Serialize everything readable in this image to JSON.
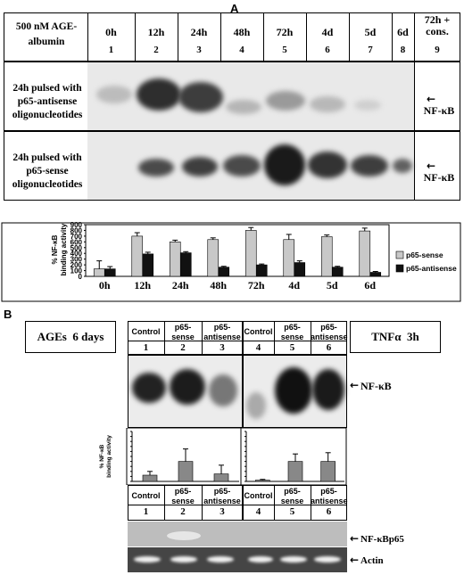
{
  "panelA": {
    "letter": "A",
    "condition_label": "500 nM AGE-albumin",
    "time_labels": [
      "0h",
      "12h",
      "24h",
      "48h",
      "72h",
      "4d",
      "5d",
      "6d",
      "72h + cons."
    ],
    "lane_numbers": [
      "1",
      "2",
      "3",
      "4",
      "5",
      "6",
      "7",
      "8",
      "9"
    ],
    "row1_label": "24h pulsed with p65-antisense oligonucleotides",
    "row2_label": "24h pulsed with p65-sense oligonucleotides",
    "nfkb_label": "NF-κB"
  },
  "chart_data": [
    {
      "type": "bar",
      "categories": [
        "0h",
        "12h",
        "24h",
        "48h",
        "72h",
        "4d",
        "5d",
        "6d"
      ],
      "series": [
        {
          "name": "p65-sense",
          "values": [
            130,
            700,
            600,
            640,
            800,
            640,
            690,
            790
          ],
          "errors": [
            140,
            60,
            30,
            30,
            50,
            90,
            30,
            50
          ],
          "color": "#c8c8c8"
        },
        {
          "name": "p65-antisense",
          "values": [
            130,
            390,
            410,
            160,
            200,
            240,
            160,
            70
          ],
          "errors": [
            40,
            30,
            20,
            15,
            15,
            30,
            15,
            15
          ],
          "color": "#111111"
        }
      ],
      "ylabel": "% NF-κB binding activity",
      "ylim": [
        0,
        900
      ],
      "yticks": [
        "0",
        "100",
        "200",
        "300",
        "400",
        "500",
        "600",
        "700",
        "800",
        "900"
      ],
      "legend": "right"
    },
    {
      "type": "bar",
      "categories": [
        "1",
        "2",
        "3"
      ],
      "series": [
        {
          "name": "",
          "values": [
            25,
            80,
            30
          ],
          "errors": [
            15,
            50,
            35
          ],
          "color": "#888888"
        }
      ],
      "ylabel": "% NF-κB binding activity",
      "ylim": [
        0,
        200
      ]
    },
    {
      "type": "bar",
      "categories": [
        "4",
        "5",
        "6"
      ],
      "series": [
        {
          "name": "",
          "values": [
            5,
            80,
            80
          ],
          "errors": [
            3,
            30,
            35
          ],
          "color": "#888888"
        }
      ],
      "ylim": [
        0,
        200
      ]
    }
  ],
  "panelB": {
    "letter": "B",
    "left_title": "AGEs  6 days",
    "right_title": "TNFα  3h",
    "col_headers_left": [
      "Control",
      "p65-sense",
      "p65-antisense"
    ],
    "col_headers_right": [
      "Control",
      "p65-sense",
      "p65-antisense"
    ],
    "lanes_left": [
      "1",
      "2",
      "3"
    ],
    "lanes_right": [
      "4",
      "5",
      "6"
    ],
    "nfkb_label": "NF-κB",
    "p65_label": "NF-κBp65",
    "actin_label": "Actin"
  }
}
